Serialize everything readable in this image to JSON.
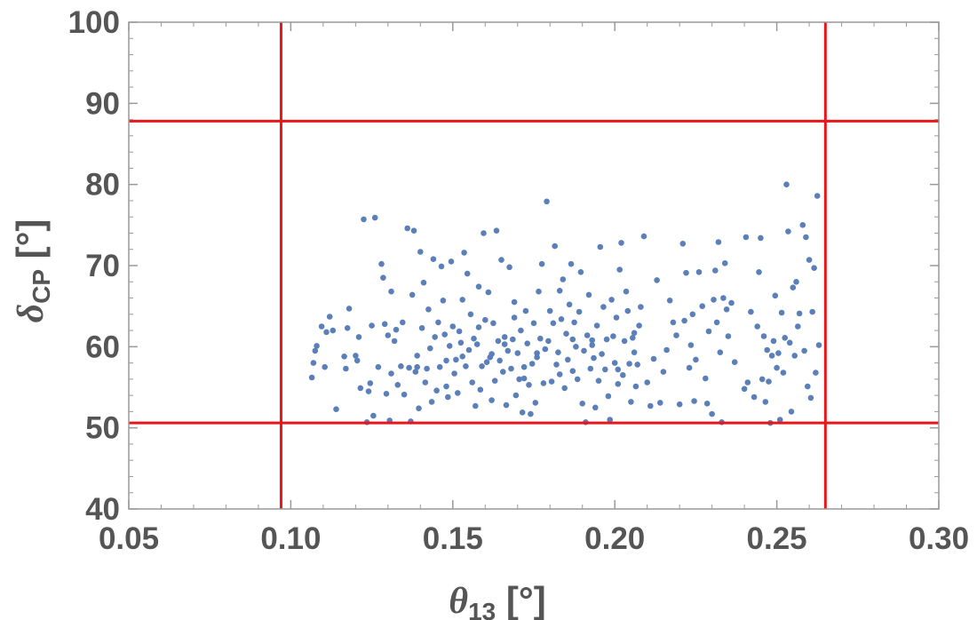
{
  "chart_data": {
    "type": "scatter",
    "title": "",
    "xlabel": {
      "symbol": "θ",
      "sub": "13",
      "unit": " [°]"
    },
    "ylabel": {
      "symbol": "δ",
      "sub": "CP",
      "unit": " [°]"
    },
    "xlim": [
      0.05,
      0.3
    ],
    "ylim": [
      40,
      100
    ],
    "xticks": [
      "0.05",
      "0.10",
      "0.15",
      "0.20",
      "0.25",
      "0.30"
    ],
    "yticks": [
      "40",
      "50",
      "60",
      "70",
      "80",
      "90",
      "100"
    ],
    "grid": false,
    "point_color": "#5b7fb8",
    "line_color": "#e8161a",
    "reference_lines": {
      "vertical": [
        0.097,
        0.265
      ],
      "horizontal": [
        50.6,
        87.8
      ]
    },
    "points": [
      [
        0.1065,
        56.2
      ],
      [
        0.107,
        58.0
      ],
      [
        0.1075,
        59.5
      ],
      [
        0.108,
        60.1
      ],
      [
        0.1095,
        62.5
      ],
      [
        0.1105,
        57.5
      ],
      [
        0.111,
        61.8
      ],
      [
        0.112,
        63.7
      ],
      [
        0.113,
        62.0
      ],
      [
        0.114,
        52.3
      ],
      [
        0.1165,
        58.8
      ],
      [
        0.117,
        57.3
      ],
      [
        0.1175,
        62.3
      ],
      [
        0.118,
        64.7
      ],
      [
        0.12,
        58.9
      ],
      [
        0.1205,
        58.3
      ],
      [
        0.121,
        61.2
      ],
      [
        0.1215,
        54.9
      ],
      [
        0.1225,
        75.7
      ],
      [
        0.1235,
        50.7
      ],
      [
        0.124,
        54.5
      ],
      [
        0.1245,
        55.5
      ],
      [
        0.125,
        62.6
      ],
      [
        0.1255,
        51.5
      ],
      [
        0.126,
        75.9
      ],
      [
        0.127,
        57.5
      ],
      [
        0.128,
        70.2
      ],
      [
        0.1285,
        68.5
      ],
      [
        0.129,
        62.8
      ],
      [
        0.1295,
        54.2
      ],
      [
        0.13,
        61.4
      ],
      [
        0.1305,
        50.9
      ],
      [
        0.131,
        66.8
      ],
      [
        0.132,
        60.7
      ],
      [
        0.1325,
        62.1
      ],
      [
        0.133,
        55.3
      ],
      [
        0.134,
        57.6
      ],
      [
        0.1345,
        63.0
      ],
      [
        0.135,
        54.1
      ],
      [
        0.136,
        74.6
      ],
      [
        0.1365,
        57.4
      ],
      [
        0.137,
        50.8
      ],
      [
        0.1375,
        66.4
      ],
      [
        0.138,
        74.3
      ],
      [
        0.1385,
        56.9
      ],
      [
        0.139,
        57.5
      ],
      [
        0.1395,
        52.4
      ],
      [
        0.14,
        71.7
      ],
      [
        0.1405,
        62.3
      ],
      [
        0.141,
        67.9
      ],
      [
        0.1415,
        55.6
      ],
      [
        0.142,
        57.3
      ],
      [
        0.1425,
        64.6
      ],
      [
        0.143,
        59.8
      ],
      [
        0.1435,
        53.2
      ],
      [
        0.144,
        70.8
      ],
      [
        0.1445,
        61.2
      ],
      [
        0.145,
        54.6
      ],
      [
        0.1455,
        63.0
      ],
      [
        0.146,
        57.5
      ],
      [
        0.1465,
        69.9
      ],
      [
        0.147,
        65.7
      ],
      [
        0.1475,
        61.5
      ],
      [
        0.148,
        55.1
      ],
      [
        0.1485,
        53.8
      ],
      [
        0.149,
        60.1
      ],
      [
        0.1495,
        70.5
      ],
      [
        0.15,
        62.5
      ],
      [
        0.1505,
        56.7
      ],
      [
        0.151,
        58.4
      ],
      [
        0.1515,
        54.3
      ],
      [
        0.152,
        61.9
      ],
      [
        0.1525,
        60.5
      ],
      [
        0.153,
        65.8
      ],
      [
        0.1535,
        71.6
      ],
      [
        0.154,
        57.6
      ],
      [
        0.1545,
        69.0
      ],
      [
        0.155,
        59.6
      ],
      [
        0.1555,
        64.0
      ],
      [
        0.156,
        55.6
      ],
      [
        0.1565,
        61.0
      ],
      [
        0.157,
        52.7
      ],
      [
        0.1575,
        60.3
      ],
      [
        0.158,
        67.4
      ],
      [
        0.1585,
        54.7
      ],
      [
        0.159,
        57.6
      ],
      [
        0.1595,
        74.0
      ],
      [
        0.16,
        63.3
      ],
      [
        0.1605,
        58.1
      ],
      [
        0.161,
        66.7
      ],
      [
        0.1615,
        58.7
      ],
      [
        0.162,
        53.4
      ],
      [
        0.1625,
        62.9
      ],
      [
        0.163,
        55.8
      ],
      [
        0.1635,
        74.3
      ],
      [
        0.164,
        60.7
      ],
      [
        0.1645,
        58.3
      ],
      [
        0.165,
        70.7
      ],
      [
        0.1655,
        56.9
      ],
      [
        0.166,
        61.2
      ],
      [
        0.1665,
        52.8
      ],
      [
        0.167,
        59.5
      ],
      [
        0.1675,
        69.8
      ],
      [
        0.168,
        57.3
      ],
      [
        0.1685,
        60.9
      ],
      [
        0.169,
        63.6
      ],
      [
        0.1695,
        54.0
      ],
      [
        0.17,
        59.2
      ],
      [
        0.1705,
        56.0
      ],
      [
        0.171,
        62.0
      ],
      [
        0.1715,
        51.9
      ],
      [
        0.172,
        56.1
      ],
      [
        0.1725,
        64.4
      ],
      [
        0.173,
        60.4
      ],
      [
        0.1735,
        55.3
      ],
      [
        0.174,
        51.7
      ],
      [
        0.1745,
        57.9
      ],
      [
        0.175,
        62.9
      ],
      [
        0.1755,
        53.1
      ],
      [
        0.176,
        59.2
      ],
      [
        0.1765,
        66.8
      ],
      [
        0.177,
        61.0
      ],
      [
        0.1775,
        70.2
      ],
      [
        0.178,
        55.5
      ],
      [
        0.1785,
        59.7
      ],
      [
        0.179,
        77.9
      ],
      [
        0.1795,
        60.7
      ],
      [
        0.18,
        64.4
      ],
      [
        0.1805,
        55.7
      ],
      [
        0.181,
        62.9
      ],
      [
        0.1815,
        72.4
      ],
      [
        0.182,
        57.8
      ],
      [
        0.1825,
        59.3
      ],
      [
        0.183,
        66.9
      ],
      [
        0.1835,
        63.4
      ],
      [
        0.184,
        68.3
      ],
      [
        0.1845,
        54.9
      ],
      [
        0.185,
        61.6
      ],
      [
        0.1855,
        58.4
      ],
      [
        0.186,
        65.2
      ],
      [
        0.1865,
        70.2
      ],
      [
        0.187,
        57.0
      ],
      [
        0.1875,
        63.0
      ],
      [
        0.188,
        60.0
      ],
      [
        0.1885,
        56.0
      ],
      [
        0.189,
        64.3
      ],
      [
        0.1895,
        69.2
      ],
      [
        0.19,
        53.0
      ],
      [
        0.1905,
        59.5
      ],
      [
        0.191,
        50.7
      ],
      [
        0.1915,
        61.4
      ],
      [
        0.192,
        66.4
      ],
      [
        0.1925,
        57.3
      ],
      [
        0.193,
        60.8
      ],
      [
        0.1935,
        58.6
      ],
      [
        0.194,
        52.5
      ],
      [
        0.1945,
        62.6
      ],
      [
        0.195,
        55.8
      ],
      [
        0.1955,
        72.3
      ],
      [
        0.196,
        59.1
      ],
      [
        0.1965,
        64.9
      ],
      [
        0.197,
        57.2
      ],
      [
        0.1975,
        60.9
      ],
      [
        0.198,
        53.9
      ],
      [
        0.1985,
        51.0
      ],
      [
        0.199,
        65.8
      ],
      [
        0.1995,
        61.3
      ],
      [
        0.2,
        58.0
      ],
      [
        0.2005,
        63.6
      ],
      [
        0.201,
        55.4
      ],
      [
        0.2015,
        69.5
      ],
      [
        0.202,
        72.8
      ],
      [
        0.2025,
        56.5
      ],
      [
        0.203,
        60.7
      ],
      [
        0.2035,
        66.8
      ],
      [
        0.204,
        64.4
      ],
      [
        0.2045,
        57.9
      ],
      [
        0.205,
        53.2
      ],
      [
        0.2055,
        61.1
      ],
      [
        0.206,
        59.3
      ],
      [
        0.2065,
        55.1
      ],
      [
        0.207,
        57.8
      ],
      [
        0.2075,
        62.6
      ],
      [
        0.208,
        64.9
      ],
      [
        0.209,
        73.6
      ],
      [
        0.21,
        55.6
      ],
      [
        0.211,
        52.7
      ],
      [
        0.212,
        58.5
      ],
      [
        0.213,
        68.2
      ],
      [
        0.214,
        53.1
      ],
      [
        0.215,
        56.9
      ],
      [
        0.216,
        59.6
      ],
      [
        0.217,
        65.7
      ],
      [
        0.218,
        63.0
      ],
      [
        0.219,
        61.4
      ],
      [
        0.22,
        52.9
      ],
      [
        0.221,
        72.7
      ],
      [
        0.2215,
        63.2
      ],
      [
        0.222,
        69.1
      ],
      [
        0.223,
        57.4
      ],
      [
        0.2235,
        60.2
      ],
      [
        0.224,
        64.0
      ],
      [
        0.2245,
        53.3
      ],
      [
        0.225,
        58.4
      ],
      [
        0.226,
        69.2
      ],
      [
        0.227,
        65.0
      ],
      [
        0.228,
        56.1
      ],
      [
        0.2285,
        53.0
      ],
      [
        0.229,
        61.9
      ],
      [
        0.23,
        51.7
      ],
      [
        0.2305,
        65.8
      ],
      [
        0.231,
        69.4
      ],
      [
        0.2315,
        63.0
      ],
      [
        0.232,
        72.9
      ],
      [
        0.2325,
        59.3
      ],
      [
        0.233,
        50.7
      ],
      [
        0.2335,
        66.0
      ],
      [
        0.234,
        70.3
      ],
      [
        0.2345,
        64.6
      ],
      [
        0.235,
        61.3
      ],
      [
        0.236,
        65.4
      ],
      [
        0.237,
        58.1
      ],
      [
        0.24,
        54.8
      ],
      [
        0.2405,
        73.5
      ],
      [
        0.241,
        55.6
      ],
      [
        0.242,
        64.3
      ],
      [
        0.243,
        53.8
      ],
      [
        0.244,
        62.5
      ],
      [
        0.2445,
        69.2
      ],
      [
        0.245,
        73.4
      ],
      [
        0.2455,
        56.0
      ],
      [
        0.246,
        61.3
      ],
      [
        0.2465,
        53.2
      ],
      [
        0.247,
        59.6
      ],
      [
        0.2475,
        55.7
      ],
      [
        0.248,
        50.6
      ],
      [
        0.2485,
        58.9
      ],
      [
        0.249,
        60.7
      ],
      [
        0.2495,
        66.3
      ],
      [
        0.25,
        57.4
      ],
      [
        0.2505,
        59.2
      ],
      [
        0.251,
        51.0
      ],
      [
        0.2515,
        64.2
      ],
      [
        0.252,
        56.8
      ],
      [
        0.2525,
        61.1
      ],
      [
        0.253,
        80.0
      ],
      [
        0.2535,
        74.2
      ],
      [
        0.254,
        60.5
      ],
      [
        0.2545,
        52.0
      ],
      [
        0.255,
        67.3
      ],
      [
        0.2555,
        58.9
      ],
      [
        0.256,
        68.0
      ],
      [
        0.2565,
        62.5
      ],
      [
        0.257,
        64.1
      ],
      [
        0.258,
        75.0
      ],
      [
        0.2585,
        59.5
      ],
      [
        0.259,
        73.5
      ],
      [
        0.2595,
        55.1
      ],
      [
        0.26,
        70.7
      ],
      [
        0.2605,
        53.7
      ],
      [
        0.261,
        64.3
      ],
      [
        0.2615,
        69.7
      ],
      [
        0.262,
        56.8
      ],
      [
        0.2625,
        78.6
      ],
      [
        0.263,
        60.2
      ],
      [
        0.158,
        62.4
      ],
      [
        0.162,
        59.1
      ],
      [
        0.169,
        65.5
      ],
      [
        0.176,
        58.7
      ],
      [
        0.183,
        56.6
      ],
      [
        0.193,
        60.2
      ],
      [
        0.201,
        57.2
      ],
      [
        0.148,
        58.3
      ],
      [
        0.139,
        58.9
      ],
      [
        0.131,
        56.7
      ],
      [
        0.153,
        58.8
      ],
      [
        0.166,
        60.3
      ],
      [
        0.172,
        57.5
      ],
      [
        0.187,
        60.9
      ],
      [
        0.206,
        61.7
      ]
    ]
  }
}
